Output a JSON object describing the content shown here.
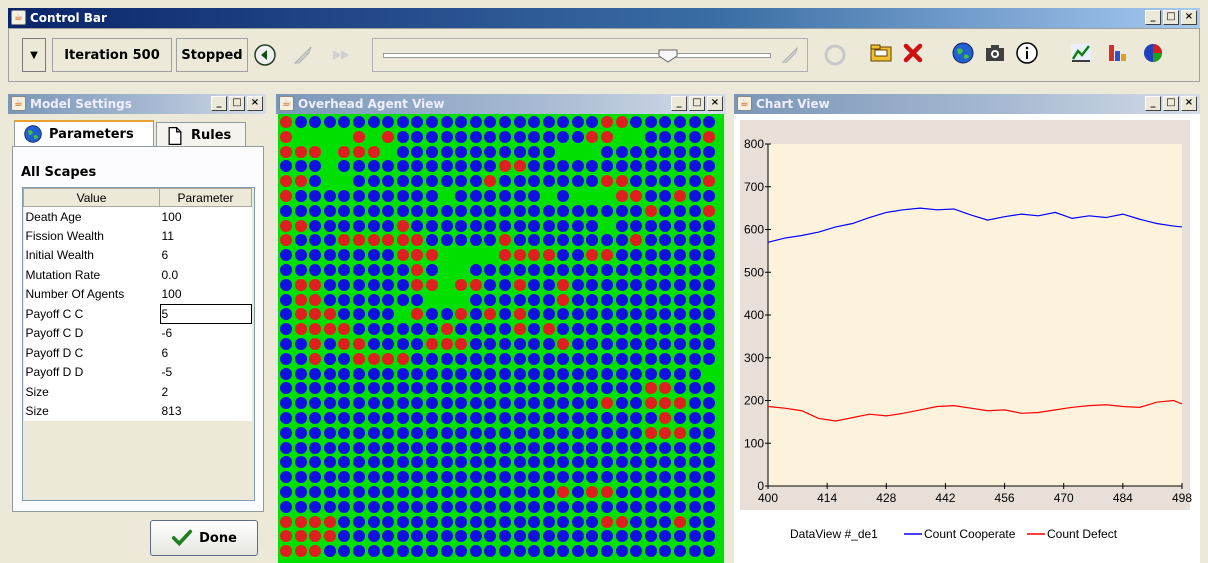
{
  "control_bar": {
    "title": "Control Bar",
    "iteration": "Iteration 500",
    "status": "Stopped",
    "slider_value": 0.73
  },
  "model_settings": {
    "title": "Model Settings",
    "tabs": [
      {
        "label": "Parameters"
      },
      {
        "label": "Rules"
      }
    ],
    "section": "All Scapes",
    "columns": [
      "Value",
      "Parameter"
    ],
    "rows": [
      {
        "name": "Death Age",
        "value": "100"
      },
      {
        "name": "Fission Wealth",
        "value": "11"
      },
      {
        "name": "Initial Wealth",
        "value": "6"
      },
      {
        "name": "Mutation Rate",
        "value": "0.0"
      },
      {
        "name": "Number Of Agents",
        "value": "100"
      },
      {
        "name": "Payoff C C",
        "value": "5"
      },
      {
        "name": "Payoff C D",
        "value": "-6"
      },
      {
        "name": "Payoff D C",
        "value": "6"
      },
      {
        "name": "Payoff D D",
        "value": "-5"
      },
      {
        "name": "Size",
        "value": "2"
      },
      {
        "name": "Size",
        "value": "813"
      }
    ],
    "done_label": "Done"
  },
  "agent_view": {
    "title": "Overhead Agent View",
    "colors": {
      "background": "#00e000",
      "cooperate": "#1010e0",
      "defect": "#e02020"
    },
    "grid_rows": [
      "rbbbbbbbbbbbbbbbbbbbbbrrbbbbbb",
      "r....r.rbbbbbbbbbbbbbrr..bbbbr",
      "rrr.rrr.bbbbbbbbbbb...bbbbbbbb",
      "bbb.bbbbbbbbbbbrrbbbbbbbbbbbbb",
      "rrb..bbbbbbbbbrbbbbbbbrrbbbbbrr",
      "rbbbbbbbbbb.bbbbbb.b...rrbbrb",
      "bbbbbbbbbbbbbbbbbbbbbbbbbrbbbr",
      "rrbbbbbbrbbbbbbbbbbbbb.bbbbbbb",
      "rbbbrrrrrrbbbbbrbbbbbbbbrbbbbbb",
      "bbbbbbbbrrr....rrrrbbrrbbbbbbb",
      "bbbbbbbbbrb..bbbbbbbbbbbbbbbbb",
      "brrbbbbbbrr.rrbbrbbrbbbbbbbbbb",
      "brrbbbbbbb...bbbbbbrbbbbbbbbbb",
      "brrrbbbb.rbbrbrbrbbbbbbbbbbbbb",
      "brrrrbbbbbbrbbbbrbrbbbbbbbbbbb",
      "bbrbrrbbbbrrrbbbbbbrbbbbbbbbbb",
      "bbrbbrrrrbbbbbbbbbbbbbbbbbbbbb",
      "bbbbbbbbbbbbbbbbbbbbbbbbbbbbb.",
      "bbbbbbbbbbbbbbbbbbbbbbbbbrrbbb",
      "bbbbbbbbbbbbbbbbbbbbbbrbbrrrbb",
      "bbbbbbbbbbbbbbbbbbbbbbbbbbrbbb",
      "bbbbbbbbbbbbbbbbbbbbbbbbbrrrbb",
      "bbbbbbbbbbbbbbbbbbbbbbbbbbbbbb",
      "bbbbbbbbbbbbbbbbbbbbbbbbbbbbbb",
      "bbbbbbbbbbbbbbbbbbbbbbbbbbbbbb",
      "bbbbbbbbbbbbbbbbbbbrbrrbbbbbbb",
      "bbbbbbbbbbbbbbbbbbbbbbbbbbbbbb",
      "rrrrbbbbbbbbbbbbbbbbbbrrbbbrbb",
      "rrrrbbbbbbbbbbbbbbbbbbbbbbbbbb",
      "rrrbbbbbbbbbbbbbbbbbbbbbbbbbbb"
    ]
  },
  "chart_view": {
    "title": "Chart View",
    "chart_data": {
      "type": "line",
      "title": "",
      "xlabel": "",
      "ylabel": "",
      "xlim": [
        400,
        498
      ],
      "ylim": [
        0,
        800
      ],
      "xticks": [
        400,
        414,
        428,
        442,
        456,
        470,
        484,
        498
      ],
      "yticks": [
        0,
        100,
        200,
        300,
        400,
        500,
        600,
        700,
        800
      ],
      "legend_prefix": "DataView #_de1",
      "series": [
        {
          "name": "Count Cooperate",
          "color": "#0000ff",
          "x": [
            400,
            404,
            408,
            412,
            416,
            420,
            424,
            428,
            432,
            436,
            440,
            444,
            448,
            452,
            456,
            460,
            464,
            468,
            472,
            476,
            480,
            484,
            488,
            492,
            496,
            498
          ],
          "y": [
            570,
            580,
            586,
            594,
            606,
            614,
            628,
            640,
            646,
            650,
            646,
            648,
            634,
            622,
            630,
            636,
            632,
            640,
            626,
            632,
            628,
            636,
            624,
            614,
            608,
            606
          ]
        },
        {
          "name": "Count Defect",
          "color": "#ff0000",
          "x": [
            400,
            404,
            408,
            412,
            416,
            420,
            424,
            428,
            432,
            436,
            440,
            444,
            448,
            452,
            456,
            460,
            464,
            468,
            472,
            476,
            480,
            484,
            488,
            492,
            496,
            498
          ],
          "y": [
            186,
            182,
            176,
            158,
            152,
            160,
            168,
            164,
            170,
            178,
            186,
            188,
            182,
            176,
            178,
            170,
            172,
            178,
            184,
            188,
            190,
            186,
            184,
            196,
            200,
            192
          ]
        }
      ]
    }
  }
}
